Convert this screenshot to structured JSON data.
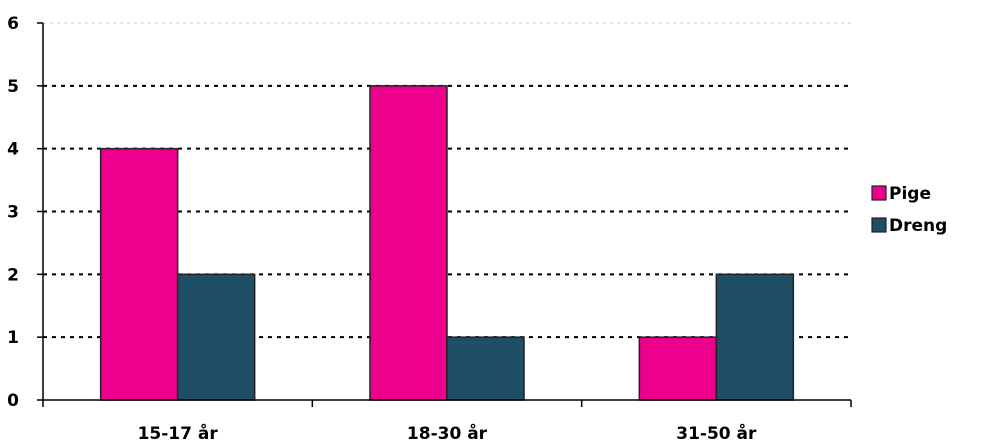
{
  "chart_data": {
    "type": "bar",
    "title": "",
    "xlabel": "",
    "ylabel": "",
    "categories": [
      "15-17 år",
      "18-30 år",
      "31-50 år"
    ],
    "series": [
      {
        "name": "Pige",
        "values": [
          4,
          5,
          1
        ],
        "color": "#EC008C"
      },
      {
        "name": "Dreng",
        "values": [
          2,
          1,
          2
        ],
        "color": "#1F4E66"
      }
    ],
    "ylim": [
      0,
      6
    ],
    "yticks": [
      0,
      1,
      2,
      3,
      4,
      5,
      6
    ],
    "grid": true,
    "legend_position": "right"
  }
}
